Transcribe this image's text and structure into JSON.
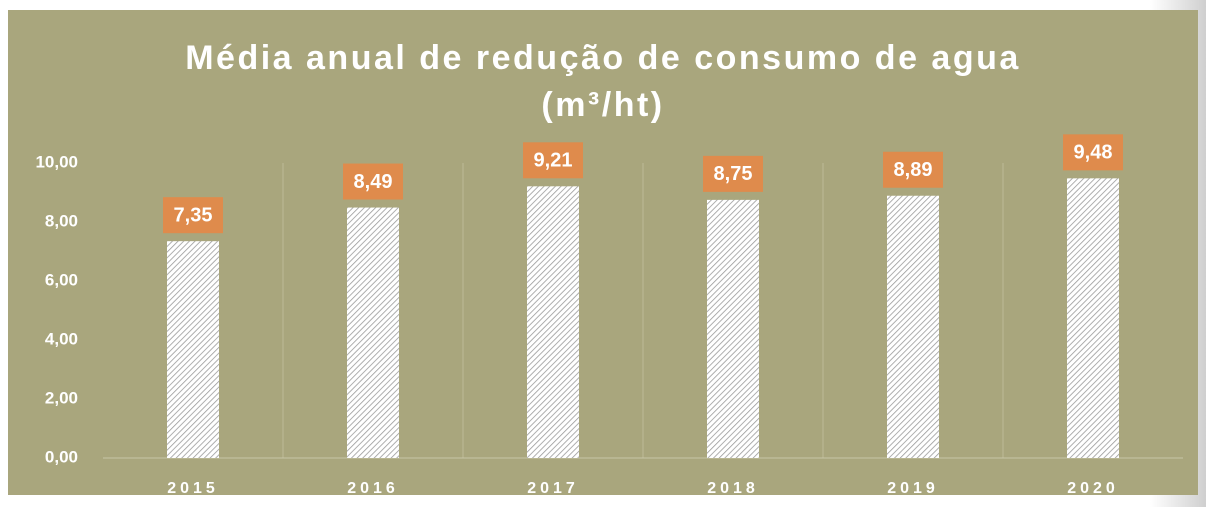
{
  "chart_data": {
    "type": "bar",
    "title": [
      "Média anual de redução de consumo de agua",
      "(m³/ht)"
    ],
    "categories": [
      "2015",
      "2016",
      "2017",
      "2018",
      "2019",
      "2020"
    ],
    "values": [
      7.35,
      8.49,
      9.21,
      8.75,
      8.89,
      9.48
    ],
    "value_labels": [
      "7,35",
      "8,49",
      "9,21",
      "8,75",
      "8,89",
      "9,48"
    ],
    "color": "#ffffff",
    "label_color": "#df8b4c",
    "background": "#a9a67d",
    "ylim": [
      0,
      10
    ],
    "yticks": [
      {
        "value": 0,
        "label": "0,00"
      },
      {
        "value": 2,
        "label": "2,00"
      },
      {
        "value": 4,
        "label": "4,00"
      },
      {
        "value": 6,
        "label": "6,00"
      },
      {
        "value": 8,
        "label": "8,00"
      },
      {
        "value": 10,
        "label": "10,00"
      }
    ]
  }
}
